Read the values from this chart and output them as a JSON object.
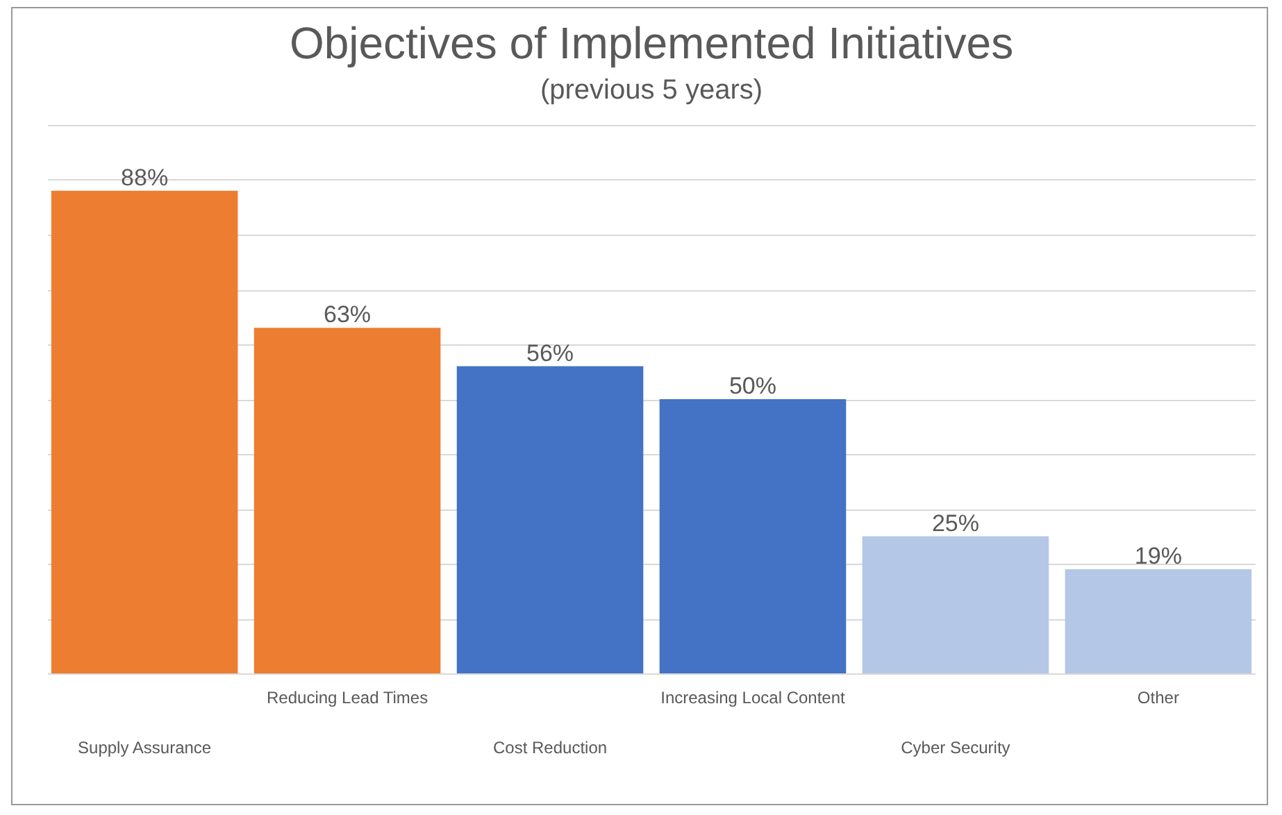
{
  "chart_data": {
    "type": "bar",
    "title": "Objectives of Implemented Initiatives",
    "subtitle": "(previous 5 years)",
    "categories": [
      "Supply Assurance",
      "Reducing Lead Times",
      "Cost Reduction",
      "Increasing Local Content",
      "Cyber Security",
      "Other"
    ],
    "values": [
      88,
      63,
      56,
      50,
      25,
      19
    ],
    "colors": [
      "#ed7d31",
      "#ed7d31",
      "#4472c4",
      "#4472c4",
      "#b4c7e7",
      "#b4c7e7"
    ],
    "value_labels": [
      "88%",
      "63%",
      "56%",
      "50%",
      "25%",
      "19%"
    ],
    "ylim": [
      0,
      100
    ],
    "grid": "y",
    "tick_labels": "x"
  }
}
